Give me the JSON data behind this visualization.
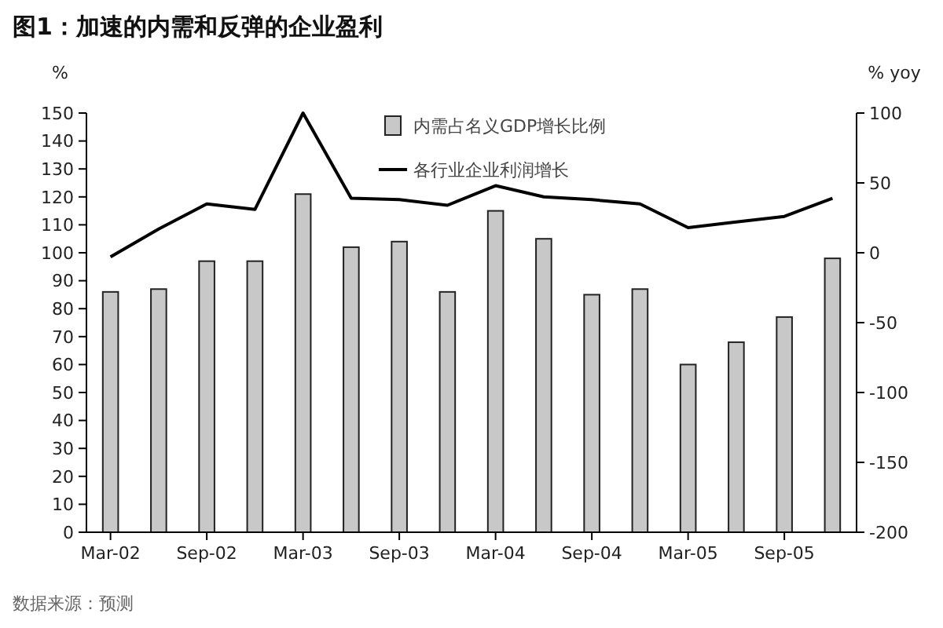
{
  "chart_data": {
    "type": "bar",
    "title": "图1：加速的内需和反弹的企业盈利",
    "ylabel": "%",
    "y2label": "% yoy",
    "categories": [
      "Mar-02",
      null,
      "Sep-02",
      null,
      "Mar-03",
      null,
      "Sep-03",
      null,
      "Mar-04",
      null,
      "Sep-04",
      null,
      "Mar-05",
      null,
      "Sep-05",
      null
    ],
    "series": [
      {
        "name": "内需占名义GDP增长比例",
        "color": "#c8c8c8",
        "values": [
          86,
          87,
          97,
          97,
          121,
          102,
          104,
          86,
          115,
          105,
          85,
          87,
          60,
          68,
          77,
          98
        ]
      },
      {
        "name": "各行业企业利润增长",
        "type": "line",
        "axis": "y2",
        "color": "#000000",
        "values": [
          -3,
          17,
          35,
          31,
          100,
          39,
          38,
          34,
          48,
          40,
          38,
          35,
          18,
          22,
          26,
          39
        ]
      }
    ],
    "ylim": [
      0,
      150
    ],
    "yticks": [
      0,
      10,
      20,
      30,
      40,
      50,
      60,
      70,
      80,
      90,
      100,
      110,
      120,
      130,
      140,
      150
    ],
    "y2lim": [
      -200,
      100
    ],
    "y2ticks": [
      -200,
      -150,
      -100,
      -50,
      0,
      50,
      100
    ],
    "legend": "top",
    "grid": false,
    "marker": "none",
    "line_style": "solid",
    "annotations": [
      "数据来源：预测"
    ]
  }
}
